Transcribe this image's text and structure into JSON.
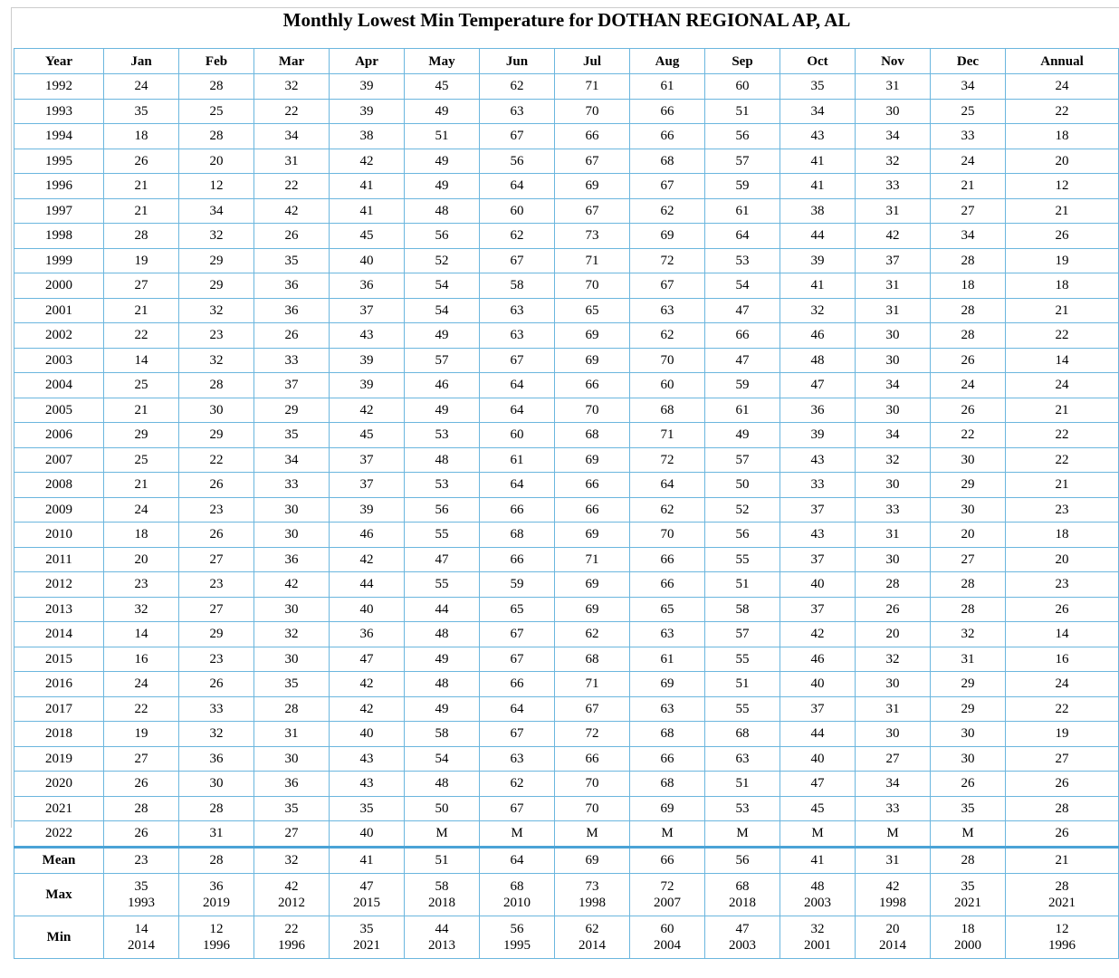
{
  "title": "Monthly Lowest Min Temperature for DOTHAN REGIONAL AP, AL",
  "table": {
    "header": [
      "Year",
      "Jan",
      "Feb",
      "Mar",
      "Apr",
      "May",
      "Jun",
      "Jul",
      "Aug",
      "Sep",
      "Oct",
      "Nov",
      "Dec",
      "Annual"
    ],
    "rows": [
      [
        1992,
        24,
        28,
        32,
        39,
        45,
        62,
        71,
        61,
        60,
        35,
        31,
        34,
        24
      ],
      [
        1993,
        35,
        25,
        22,
        39,
        49,
        63,
        70,
        66,
        51,
        34,
        30,
        25,
        22
      ],
      [
        1994,
        18,
        28,
        34,
        38,
        51,
        67,
        66,
        66,
        56,
        43,
        34,
        33,
        18
      ],
      [
        1995,
        26,
        20,
        31,
        42,
        49,
        56,
        67,
        68,
        57,
        41,
        32,
        24,
        20
      ],
      [
        1996,
        21,
        12,
        22,
        41,
        49,
        64,
        69,
        67,
        59,
        41,
        33,
        21,
        12
      ],
      [
        1997,
        21,
        34,
        42,
        41,
        48,
        60,
        67,
        62,
        61,
        38,
        31,
        27,
        21
      ],
      [
        1998,
        28,
        32,
        26,
        45,
        56,
        62,
        73,
        69,
        64,
        44,
        42,
        34,
        26
      ],
      [
        1999,
        19,
        29,
        35,
        40,
        52,
        67,
        71,
        72,
        53,
        39,
        37,
        28,
        19
      ],
      [
        2000,
        27,
        29,
        36,
        36,
        54,
        58,
        70,
        67,
        54,
        41,
        31,
        18,
        18
      ],
      [
        2001,
        21,
        32,
        36,
        37,
        54,
        63,
        65,
        63,
        47,
        32,
        31,
        28,
        21
      ],
      [
        2002,
        22,
        23,
        26,
        43,
        49,
        63,
        69,
        62,
        66,
        46,
        30,
        28,
        22
      ],
      [
        2003,
        14,
        32,
        33,
        39,
        57,
        67,
        69,
        70,
        47,
        48,
        30,
        26,
        14
      ],
      [
        2004,
        25,
        28,
        37,
        39,
        46,
        64,
        66,
        60,
        59,
        47,
        34,
        24,
        24
      ],
      [
        2005,
        21,
        30,
        29,
        42,
        49,
        64,
        70,
        68,
        61,
        36,
        30,
        26,
        21
      ],
      [
        2006,
        29,
        29,
        35,
        45,
        53,
        60,
        68,
        71,
        49,
        39,
        34,
        22,
        22
      ],
      [
        2007,
        25,
        22,
        34,
        37,
        48,
        61,
        69,
        72,
        57,
        43,
        32,
        30,
        22
      ],
      [
        2008,
        21,
        26,
        33,
        37,
        53,
        64,
        66,
        64,
        50,
        33,
        30,
        29,
        21
      ],
      [
        2009,
        24,
        23,
        30,
        39,
        56,
        66,
        66,
        62,
        52,
        37,
        33,
        30,
        23
      ],
      [
        2010,
        18,
        26,
        30,
        46,
        55,
        68,
        69,
        70,
        56,
        43,
        31,
        20,
        18
      ],
      [
        2011,
        20,
        27,
        36,
        42,
        47,
        66,
        71,
        66,
        55,
        37,
        30,
        27,
        20
      ],
      [
        2012,
        23,
        23,
        42,
        44,
        55,
        59,
        69,
        66,
        51,
        40,
        28,
        28,
        23
      ],
      [
        2013,
        32,
        27,
        30,
        40,
        44,
        65,
        69,
        65,
        58,
        37,
        26,
        28,
        26
      ],
      [
        2014,
        14,
        29,
        32,
        36,
        48,
        67,
        62,
        63,
        57,
        42,
        20,
        32,
        14
      ],
      [
        2015,
        16,
        23,
        30,
        47,
        49,
        67,
        68,
        61,
        55,
        46,
        32,
        31,
        16
      ],
      [
        2016,
        24,
        26,
        35,
        42,
        48,
        66,
        71,
        69,
        51,
        40,
        30,
        29,
        24
      ],
      [
        2017,
        22,
        33,
        28,
        42,
        49,
        64,
        67,
        63,
        55,
        37,
        31,
        29,
        22
      ],
      [
        2018,
        19,
        32,
        31,
        40,
        58,
        67,
        72,
        68,
        68,
        44,
        30,
        30,
        19
      ],
      [
        2019,
        27,
        36,
        30,
        43,
        54,
        63,
        66,
        66,
        63,
        40,
        27,
        30,
        27
      ],
      [
        2020,
        26,
        30,
        36,
        43,
        48,
        62,
        70,
        68,
        51,
        47,
        34,
        26,
        26
      ],
      [
        2021,
        28,
        28,
        35,
        35,
        50,
        67,
        70,
        69,
        53,
        45,
        33,
        35,
        28
      ],
      [
        2022,
        26,
        31,
        27,
        40,
        "M",
        "M",
        "M",
        "M",
        "M",
        "M",
        "M",
        "M",
        26
      ]
    ],
    "summary": [
      {
        "label": "Mean",
        "values": [
          23,
          28,
          32,
          41,
          51,
          64,
          69,
          66,
          56,
          41,
          31,
          28,
          21
        ]
      },
      {
        "label": "Max",
        "values": [
          {
            "value": 35,
            "year": 1993
          },
          {
            "value": 36,
            "year": 2019
          },
          {
            "value": 42,
            "year": 2012
          },
          {
            "value": 47,
            "year": 2015
          },
          {
            "value": 58,
            "year": 2018
          },
          {
            "value": 68,
            "year": 2010
          },
          {
            "value": 73,
            "year": 1998
          },
          {
            "value": 72,
            "year": 2007
          },
          {
            "value": 68,
            "year": 2018
          },
          {
            "value": 48,
            "year": 2003
          },
          {
            "value": 42,
            "year": 1998
          },
          {
            "value": 35,
            "year": 2021
          },
          {
            "value": 28,
            "year": 2021
          }
        ]
      },
      {
        "label": "Min",
        "values": [
          {
            "value": 14,
            "year": 2014
          },
          {
            "value": 12,
            "year": 1996
          },
          {
            "value": 22,
            "year": 1996
          },
          {
            "value": 35,
            "year": 2021
          },
          {
            "value": 44,
            "year": 2013
          },
          {
            "value": 56,
            "year": 1995
          },
          {
            "value": 62,
            "year": 2014
          },
          {
            "value": 60,
            "year": 2004
          },
          {
            "value": 47,
            "year": 2003
          },
          {
            "value": 32,
            "year": 2001
          },
          {
            "value": 20,
            "year": 2014
          },
          {
            "value": 18,
            "year": 2000
          },
          {
            "value": 12,
            "year": 1996
          }
        ]
      }
    ]
  }
}
